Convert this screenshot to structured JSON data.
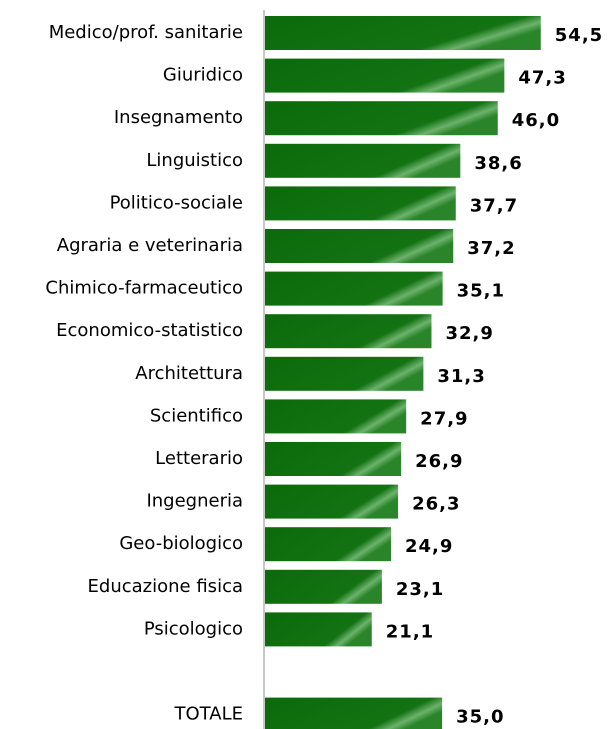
{
  "chart_data": {
    "type": "hbar",
    "categories": [
      "Medico/prof. sanitarie",
      "Giuridico",
      "Insegnamento",
      "Linguistico",
      "Politico-sociale",
      "Agraria e veterinaria",
      "Chimico-farmaceutico",
      "Economico-statistico",
      "Architettura",
      "Scientifico",
      "Letterario",
      "Ingegneria",
      "Geo-biologico",
      "Educazione fisica",
      "Psicologico",
      null,
      "TOTALE"
    ],
    "values": [
      54.5,
      47.3,
      46.0,
      38.6,
      37.7,
      37.2,
      35.1,
      32.9,
      31.3,
      27.9,
      26.9,
      26.3,
      24.9,
      23.1,
      21.1,
      null,
      35.0
    ],
    "value_labels": [
      "54,5",
      "47,3",
      "46,0",
      "38,6",
      "37,7",
      "37,2",
      "35,1",
      "32,9",
      "31,3",
      "27,9",
      "26,9",
      "26,3",
      "24,9",
      "23,1",
      "21,1",
      null,
      "35,0"
    ],
    "color": "#0b6b0b"
  }
}
